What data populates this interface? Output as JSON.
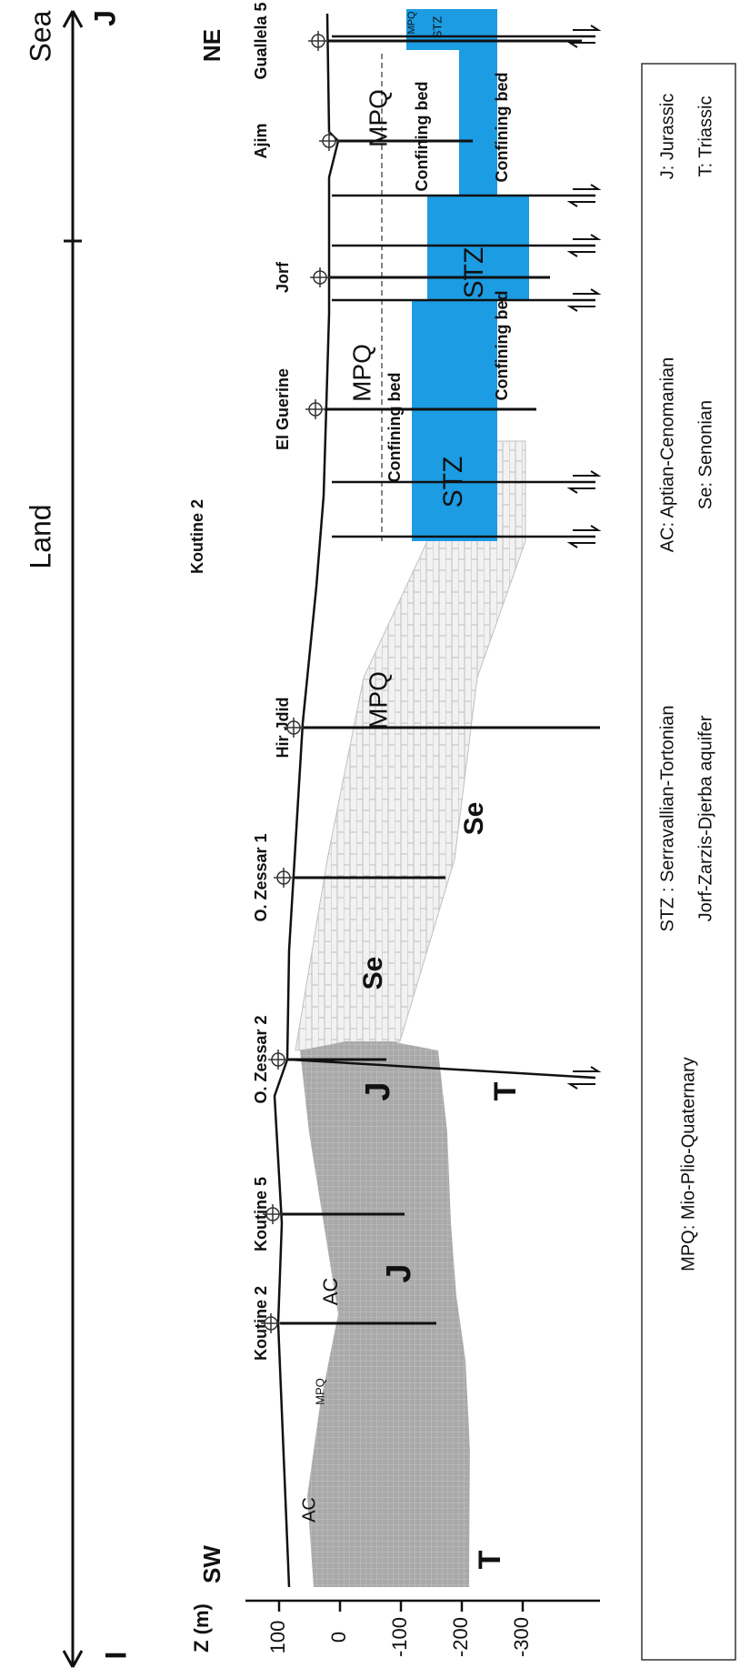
{
  "header": {
    "land": "Land",
    "sea": "Sea",
    "start": "I",
    "end": "J",
    "southwest": "SW",
    "northeast": "NE"
  },
  "z_axis": {
    "label": "Z (m)",
    "ticks": [
      100,
      0,
      -100,
      -200,
      -300
    ]
  },
  "wells": [
    {
      "label": "Koutine 2"
    },
    {
      "label": "Koutine 5"
    },
    {
      "label": "O. Zessar 2"
    },
    {
      "label": "O. Zessar 1"
    },
    {
      "label": "Hir Jdid"
    },
    {
      "label": "Koutine 2"
    },
    {
      "label": "El Guerine"
    },
    {
      "label": "Jorf"
    },
    {
      "label": "Ajim"
    },
    {
      "label": "Guallela 5"
    }
  ],
  "units": [
    "AC",
    "T",
    "MPQ",
    "AC",
    "J",
    "J",
    "T",
    "Se",
    "Se",
    "MPQ",
    "MPQ",
    "Confining bed",
    "STZ",
    "Confining bed",
    "STZ",
    "MPQ",
    "Confining bed",
    "Confining bed",
    "STZ",
    "MPQ"
  ],
  "legend": [
    "J: Jurassic",
    "T: Triassic",
    "AC: Aptian-Cenomanian",
    "Se: Senonian",
    "STZ : Serravallian-Tortonian",
    "Jorf-Zarzis-Djerba aquifer",
    "MPQ: Mio-Plio-Quaternary"
  ]
}
